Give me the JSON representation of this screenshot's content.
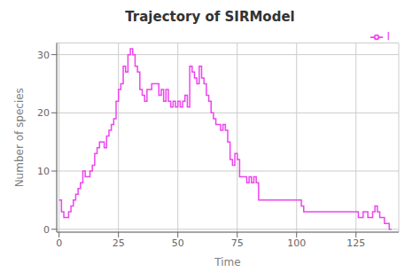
{
  "chart_data": {
    "type": "step",
    "title": "Trajectory of SIRModel",
    "xlabel": "Time",
    "ylabel": "Number of species",
    "xlim": [
      -1,
      143
    ],
    "ylim": [
      -0.5,
      32
    ],
    "xticks": [
      0,
      25,
      50,
      75,
      100,
      125
    ],
    "yticks": [
      0,
      10,
      20,
      30
    ],
    "grid": true,
    "legend": "upper right",
    "x": [
      0,
      1,
      2,
      3,
      4,
      5,
      6,
      7,
      8,
      9,
      10,
      11,
      12,
      13,
      14,
      15,
      16,
      17,
      18,
      19,
      20,
      21,
      22,
      23,
      24,
      25,
      26,
      27,
      28,
      29,
      30,
      31,
      32,
      33,
      34,
      35,
      36,
      37,
      38,
      39,
      40,
      41,
      42,
      43,
      44,
      45,
      46,
      47,
      48,
      49,
      50,
      51,
      52,
      53,
      54,
      55,
      56,
      57,
      58,
      59,
      60,
      61,
      62,
      63,
      64,
      65,
      66,
      67,
      68,
      69,
      70,
      71,
      72,
      73,
      74,
      75,
      76,
      77,
      78,
      79,
      80,
      81,
      82,
      83,
      84,
      85,
      86,
      87,
      88,
      89,
      90,
      91,
      92,
      93,
      94,
      95,
      96,
      97,
      98,
      99,
      100,
      101,
      102,
      103,
      104,
      105,
      106,
      107,
      108,
      109,
      110,
      111,
      112,
      113,
      114,
      115,
      116,
      117,
      118,
      119,
      120,
      121,
      122,
      123,
      124,
      125,
      126,
      127,
      128,
      129,
      130,
      131,
      132,
      133,
      134,
      135,
      136,
      137,
      138,
      139,
      140
    ],
    "series": [
      {
        "name": "I",
        "color": "#ee44ee",
        "values": [
          5,
          3,
          2,
          2,
          3,
          4,
          5,
          6,
          7,
          8,
          10,
          9,
          9,
          10,
          11,
          13,
          14,
          15,
          15,
          14,
          16,
          17,
          18,
          19,
          22,
          24,
          25,
          28,
          27,
          30,
          31,
          30,
          28,
          27,
          24,
          23,
          22,
          24,
          24,
          25,
          25,
          25,
          23,
          24,
          22,
          24,
          22,
          21,
          22,
          21,
          22,
          21,
          22,
          23,
          21,
          28,
          27,
          26,
          25,
          28,
          26,
          25,
          23,
          22,
          20,
          19,
          18,
          18,
          17,
          18,
          17,
          15,
          12,
          11,
          13,
          12,
          9,
          9,
          9,
          8,
          9,
          8,
          9,
          8,
          5,
          5,
          5,
          5,
          5,
          5,
          5,
          5,
          5,
          5,
          5,
          5,
          5,
          5,
          5,
          5,
          5,
          5,
          4,
          3,
          3,
          3,
          3,
          3,
          3,
          3,
          3,
          3,
          3,
          3,
          3,
          3,
          3,
          3,
          3,
          3,
          3,
          3,
          3,
          3,
          3,
          3,
          2,
          2,
          3,
          3,
          2,
          2,
          3,
          4,
          3,
          2,
          2,
          1,
          1,
          0,
          0
        ]
      }
    ]
  }
}
